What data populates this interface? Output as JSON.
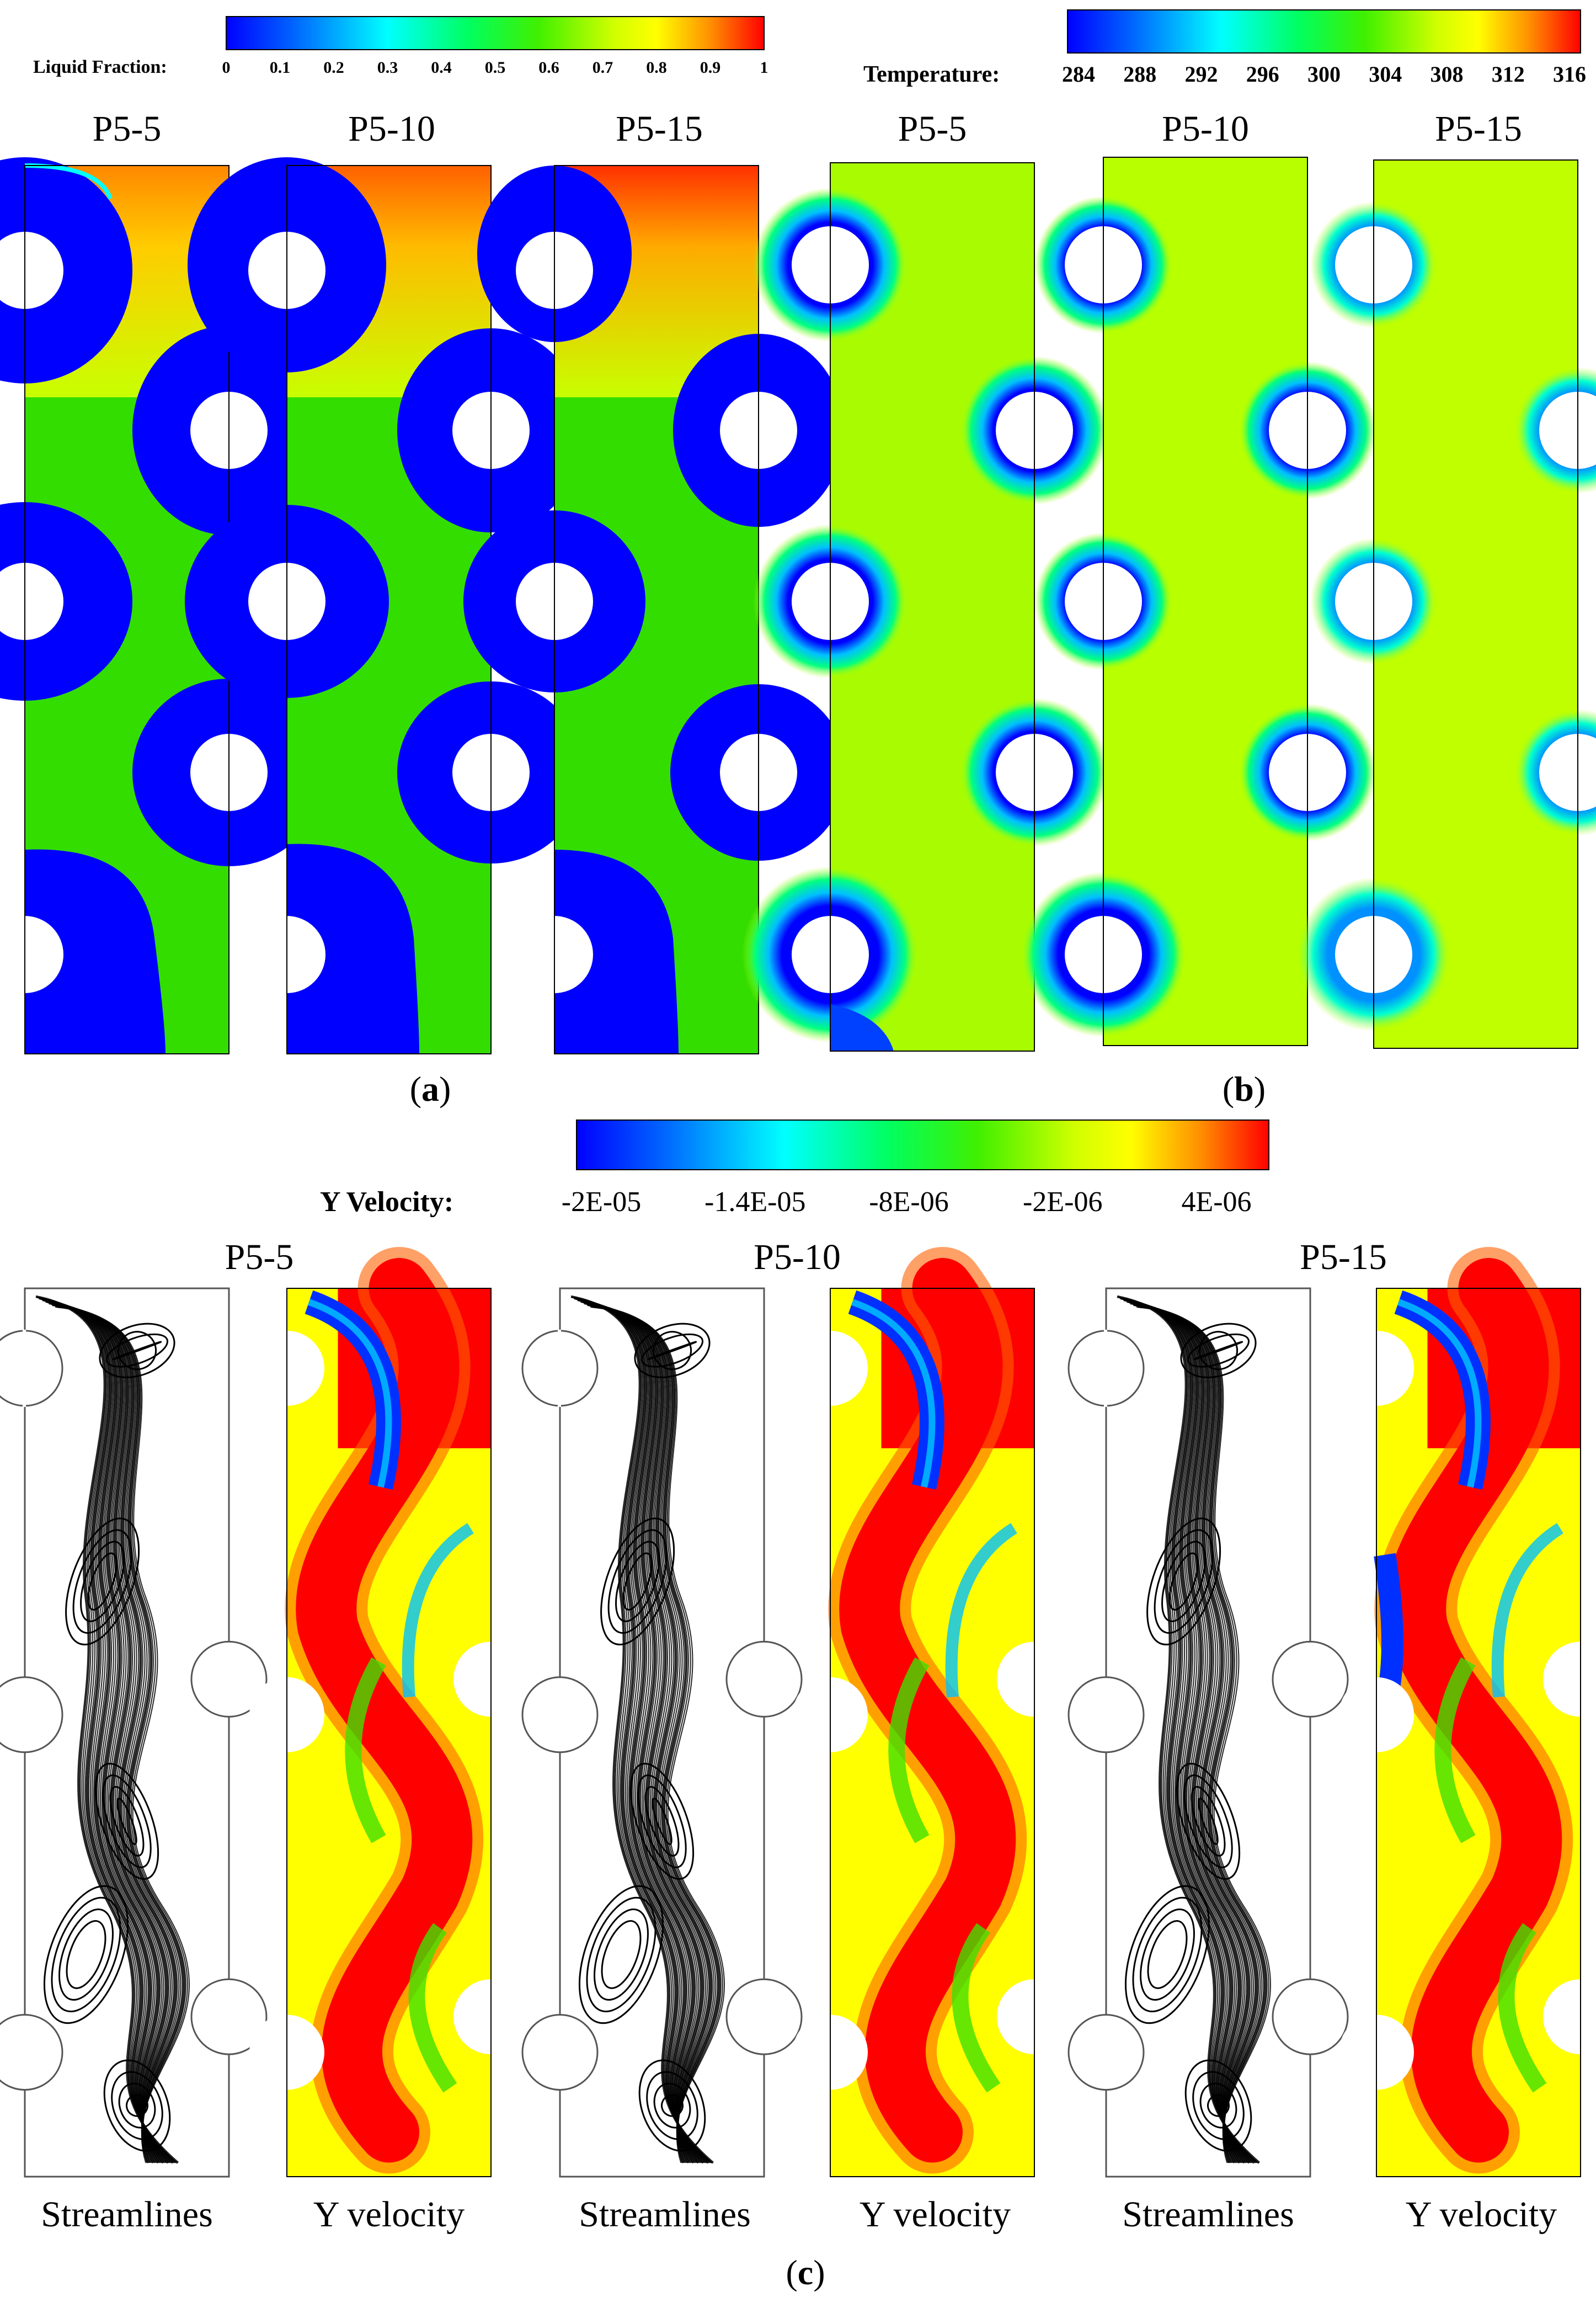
{
  "figure": {
    "panel_a": {
      "label_open": "(",
      "label_letter": "a",
      "label_close": ")",
      "colorbar": {
        "title": "Liquid Fraction:",
        "ticks": [
          "0",
          "0.1",
          "0.2",
          "0.3",
          "0.4",
          "0.5",
          "0.6",
          "0.7",
          "0.8",
          "0.9",
          "1"
        ],
        "min": 0,
        "max": 1
      },
      "cases": [
        "P5-5",
        "P5-10",
        "P5-15"
      ],
      "liquid_fraction_levels": {
        "P5-5": {
          "top_melt": 0.8,
          "mushy_zone": 0.6,
          "solid": 0.0
        },
        "P5-10": {
          "top_melt": 0.85,
          "mushy_zone": 0.6,
          "solid": 0.0
        },
        "P5-15": {
          "top_melt": 0.9,
          "mushy_zone": 0.6,
          "solid": 0.0
        }
      }
    },
    "panel_b": {
      "label_open": "(",
      "label_letter": "b",
      "label_close": ")",
      "colorbar": {
        "title": "Temperature:",
        "ticks": [
          "284",
          "288",
          "292",
          "296",
          "300",
          "304",
          "308",
          "312",
          "316"
        ],
        "min": 282,
        "max": 318
      },
      "cases": [
        "P5-5",
        "P5-10",
        "P5-15"
      ]
    },
    "panel_c": {
      "label_open": "(",
      "label_letter": "c",
      "label_close": ")",
      "colorbar": {
        "title": "Y Velocity:",
        "ticks": [
          "-2E-05",
          "-1.4E-05",
          "-8E-06",
          "-2E-06",
          "4E-06"
        ]
      },
      "cases": [
        "P5-5",
        "P5-10",
        "P5-15"
      ],
      "column_labels": [
        "Streamlines",
        "Y velocity",
        "Streamlines",
        "Y velocity",
        "Streamlines",
        "Y velocity"
      ]
    },
    "colors": {
      "jet": [
        "#0000ff",
        "#00a0ff",
        "#00ffff",
        "#00ff80",
        "#00e000",
        "#80ff00",
        "#ffff00",
        "#ffa000",
        "#ff4000",
        "#ff0000"
      ],
      "solid_pcm": "#0000ff",
      "green_field": "#33dd00",
      "yellow_field": "#ffff00",
      "red_field": "#ff0000",
      "yellow_green_field": "#b8ff00"
    }
  }
}
